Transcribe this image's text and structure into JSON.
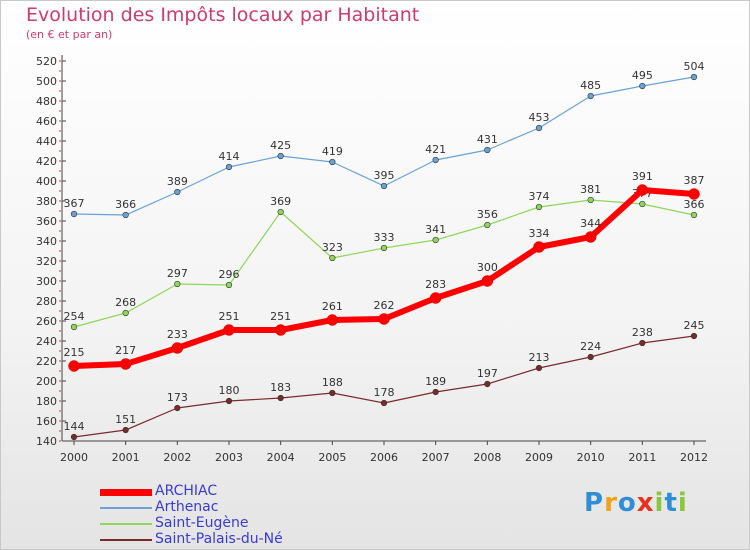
{
  "chart_data": {
    "type": "line",
    "title": "Evolution des Impôts locaux par Habitant",
    "subtitle": "(en € et par an)",
    "xlabel": "",
    "ylabel": "",
    "x": [
      "2000",
      "2001",
      "2002",
      "2003",
      "2004",
      "2005",
      "2006",
      "2007",
      "2008",
      "2009",
      "2010",
      "2011",
      "2012"
    ],
    "ylim": [
      140,
      520
    ],
    "yticks": [
      "140",
      "160",
      "180",
      "200",
      "220",
      "240",
      "260",
      "280",
      "300",
      "320",
      "340",
      "360",
      "380",
      "400",
      "420",
      "440",
      "460",
      "480",
      "500",
      "520"
    ],
    "grid": false,
    "legend_position": "bottom-left",
    "series": [
      {
        "name": "ARCHIAC",
        "color": "#ff0000",
        "values": [
          215,
          217,
          233,
          251,
          251,
          261,
          262,
          283,
          300,
          334,
          344,
          391,
          387
        ]
      },
      {
        "name": "Arthenac",
        "color": "#6aa2d6",
        "values": [
          367,
          366,
          389,
          414,
          425,
          419,
          395,
          421,
          431,
          453,
          485,
          495,
          504
        ]
      },
      {
        "name": "Saint-Eugène",
        "color": "#8fd65a",
        "values": [
          254,
          268,
          297,
          296,
          369,
          323,
          333,
          341,
          356,
          374,
          381,
          377,
          366
        ]
      },
      {
        "name": "Saint-Palais-du-Né",
        "color": "#7a2a2a",
        "values": [
          144,
          151,
          173,
          180,
          183,
          188,
          178,
          189,
          197,
          213,
          224,
          238,
          245
        ]
      }
    ]
  },
  "logo": {
    "text": "Proxiti",
    "colors": [
      "#2f8fd6",
      "#f0a21a",
      "#2f8fd6",
      "#e8321a",
      "#8cc63e",
      "#2f8fd6",
      "#8cc63e"
    ]
  }
}
